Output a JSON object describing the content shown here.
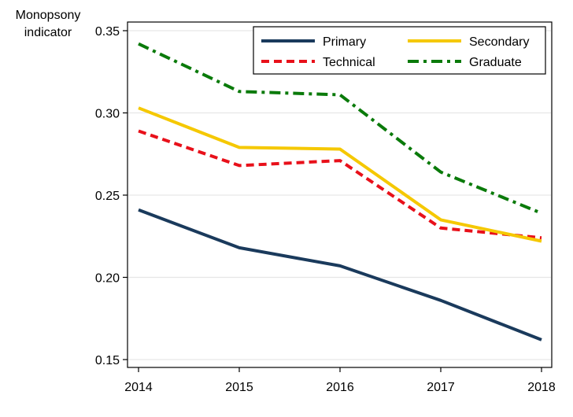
{
  "chart_data": {
    "type": "line",
    "title": "",
    "ylabel_lines": [
      "Monopsony",
      "indicator"
    ],
    "xlabel": "",
    "x": [
      "2014",
      "2015",
      "2016",
      "2017",
      "2018"
    ],
    "ylim": [
      0.145,
      0.355
    ],
    "yticks": [
      "0.15",
      "0.20",
      "0.25",
      "0.30",
      "0.35"
    ],
    "grid": true,
    "legend_position": "top-right",
    "series": [
      {
        "name": "Primary",
        "values": [
          0.241,
          0.218,
          0.207,
          0.186,
          0.162
        ],
        "color": "#1a3a5c",
        "style": "solid"
      },
      {
        "name": "Technical",
        "values": [
          0.289,
          0.268,
          0.271,
          0.23,
          0.224
        ],
        "color": "#e8101a",
        "style": "dash"
      },
      {
        "name": "Secondary",
        "values": [
          0.303,
          0.279,
          0.278,
          0.235,
          0.222
        ],
        "color": "#f5c800",
        "style": "solid"
      },
      {
        "name": "Graduate",
        "values": [
          0.342,
          0.313,
          0.311,
          0.264,
          0.239
        ],
        "color": "#0a7a0a",
        "style": "dashdot"
      }
    ]
  }
}
